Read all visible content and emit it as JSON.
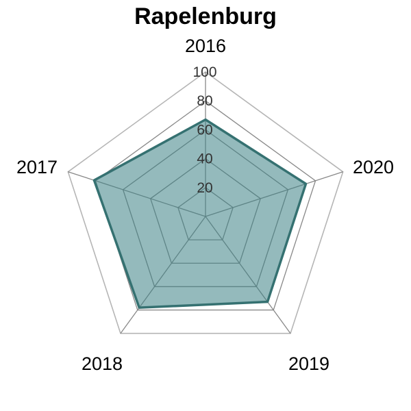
{
  "chart_data": {
    "type": "radar",
    "title": "Rapelenburg",
    "categories": [
      "2016",
      "2017",
      "2018",
      "2019",
      "2020"
    ],
    "series": [
      {
        "values": [
          67,
          73,
          73,
          78,
          81
        ]
      }
    ],
    "rlim": [
      0,
      100
    ],
    "ticks": [
      "20",
      "40",
      "60",
      "80",
      "100"
    ],
    "grid": true,
    "colors": {
      "fill": "#3c8285",
      "stroke": "#357171",
      "grid_outer": "#b5b5b5",
      "grid_inner": "#888888"
    }
  }
}
